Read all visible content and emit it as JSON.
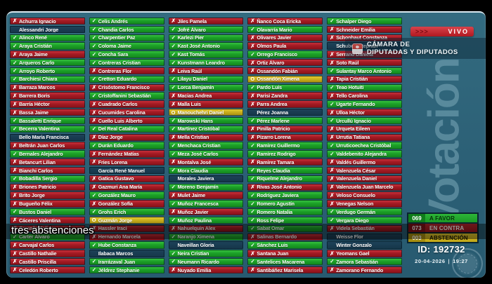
{
  "live": {
    "chevrons": ">>>",
    "label": "VIVO"
  },
  "org": {
    "line1": "CÁMARA DE",
    "line2": "DIPUTADAS Y DIPUTADOS"
  },
  "watermark": "Votación",
  "caption": "tres abstenciones",
  "vote_id": "ID: 192732",
  "date": "20-04-2026",
  "separator": "|",
  "time": "19:27",
  "marks": {
    "yes": "✓",
    "no": "✗",
    "abs": "O",
    "none": ""
  },
  "colors": {
    "favor": "#1da028",
    "contra": "#a31b24",
    "abstencion": "#c4a91a",
    "background": "#2c6076"
  },
  "totals": [
    {
      "type": "favor",
      "value": "069",
      "label": "A FAVOR"
    },
    {
      "type": "contra",
      "value": "073",
      "label": "EN CONTRA"
    },
    {
      "type": "abs",
      "value": "003",
      "label": "ABSTENCIÓN"
    }
  ],
  "columns": [
    [
      {
        "v": "no",
        "n": "Achurra Ignacio"
      },
      {
        "v": "none",
        "n": "Alessandri Jorge"
      },
      {
        "v": "yes",
        "n": "Alinco René"
      },
      {
        "v": "yes",
        "n": "Araya Cristián"
      },
      {
        "v": "no",
        "n": "Araya Jaime"
      },
      {
        "v": "yes",
        "n": "Arqueros Carlo"
      },
      {
        "v": "yes",
        "n": "Arroyo Roberto"
      },
      {
        "v": "yes",
        "n": "Barchiesi Chiara"
      },
      {
        "v": "no",
        "n": "Barraza Marcos"
      },
      {
        "v": "no",
        "n": "Barrera Boris"
      },
      {
        "v": "no",
        "n": "Barría Héctor"
      },
      {
        "v": "no",
        "n": "Bassa Jaime"
      },
      {
        "v": "yes",
        "n": "Bassaletti Enrique"
      },
      {
        "v": "yes",
        "n": "Becerra Valentina"
      },
      {
        "v": "none",
        "n": "Bello María Francisca"
      },
      {
        "v": "no",
        "n": "Beltrán Juan Carlos"
      },
      {
        "v": "yes",
        "n": "Bernales Alejandro"
      },
      {
        "v": "no",
        "n": "Betancurt Lilian"
      },
      {
        "v": "no",
        "n": "Bianchi Carlos"
      },
      {
        "v": "yes",
        "n": "Bobadilla Sergio"
      },
      {
        "v": "no",
        "n": "Briones Patricio"
      },
      {
        "v": "no",
        "n": "Brito Jorge"
      },
      {
        "v": "no",
        "n": "Bugueño Félix"
      },
      {
        "v": "yes",
        "n": "Bustos Daniel"
      },
      {
        "v": "no",
        "n": "Cáceres Valentina"
      },
      {
        "v": "no",
        "n": "Camaño Felipe"
      },
      {
        "v": "yes",
        "n": "Carter Álvaro"
      },
      {
        "v": "no",
        "n": "Carvajal Carlos"
      },
      {
        "v": "no",
        "n": "Castillo Nathalie"
      },
      {
        "v": "no",
        "n": "Castillo Priscilla"
      },
      {
        "v": "no",
        "n": "Celedón Roberto"
      }
    ],
    [
      {
        "v": "yes",
        "n": "Celis Andrés"
      },
      {
        "v": "yes",
        "n": "Chandia Carlos"
      },
      {
        "v": "yes",
        "n": "Charpentier Paz"
      },
      {
        "v": "yes",
        "n": "Coloma Jaime"
      },
      {
        "v": "yes",
        "n": "Concha Sara"
      },
      {
        "v": "yes",
        "n": "Contreras Cristian"
      },
      {
        "v": "no",
        "n": "Contreras Flor"
      },
      {
        "v": "yes",
        "n": "Cretton Eduardo"
      },
      {
        "v": "no",
        "n": "Crisóstomo Francisco"
      },
      {
        "v": "yes",
        "n": "Cristoffanini Sebastián"
      },
      {
        "v": "no",
        "n": "Cuadrado Carlos"
      },
      {
        "v": "no",
        "n": "Cucumides Carolina"
      },
      {
        "v": "no",
        "n": "Cuello Luis Alberto"
      },
      {
        "v": "yes",
        "n": "Del Real Catalina"
      },
      {
        "v": "no",
        "n": "Díaz Jorge"
      },
      {
        "v": "yes",
        "n": "Durán Eduardo"
      },
      {
        "v": "no",
        "n": "Fernández Matías"
      },
      {
        "v": "no",
        "n": "Fries Lorena"
      },
      {
        "v": "none",
        "n": "García René Manuel"
      },
      {
        "v": "no",
        "n": "Gatica Gustavo"
      },
      {
        "v": "no",
        "n": "Gazmuri Ana María"
      },
      {
        "v": "yes",
        "n": "González Mauro"
      },
      {
        "v": "no",
        "n": "González Sofía"
      },
      {
        "v": "yes",
        "n": "Grohs Erich"
      },
      {
        "v": "abs",
        "n": "Guzmán Jorge"
      },
      {
        "v": "no",
        "n": "Hassler Iraci"
      },
      {
        "v": "no",
        "n": "Hernando Marcela"
      },
      {
        "v": "yes",
        "n": "Hube Constanza"
      },
      {
        "v": "none",
        "n": "Ilabaca Marcos"
      },
      {
        "v": "yes",
        "n": "Irarrázaval Juan"
      },
      {
        "v": "yes",
        "n": "Jéldrez Stephanie"
      }
    ],
    [
      {
        "v": "no",
        "n": "Jiles Pamela"
      },
      {
        "v": "yes",
        "n": "Jofré Álvaro"
      },
      {
        "v": "yes",
        "n": "Karlezi Pier"
      },
      {
        "v": "yes",
        "n": "Kast José Antonio"
      },
      {
        "v": "yes",
        "n": "Kast Tomás"
      },
      {
        "v": "yes",
        "n": "Kunstmann Leandro"
      },
      {
        "v": "no",
        "n": "Leiva Raúl"
      },
      {
        "v": "yes",
        "n": "Lilayu Daniel"
      },
      {
        "v": "yes",
        "n": "Lorca Benjamín"
      },
      {
        "v": "no",
        "n": "Macias Andrea"
      },
      {
        "v": "no",
        "n": "Malla Luis"
      },
      {
        "v": "abs",
        "n": "Manouchehri Daniel"
      },
      {
        "v": "yes",
        "n": "Marowski Hans"
      },
      {
        "v": "yes",
        "n": "Martínez Cristóbal"
      },
      {
        "v": "no",
        "n": "Mella Cristian"
      },
      {
        "v": "yes",
        "n": "Menchaca Cristian"
      },
      {
        "v": "yes",
        "n": "Meza José Carlos"
      },
      {
        "v": "no",
        "n": "Montalva José"
      },
      {
        "v": "yes",
        "n": "Mora Claudia"
      },
      {
        "v": "none",
        "n": "Morales Javiera"
      },
      {
        "v": "yes",
        "n": "Moreno Benjamín"
      },
      {
        "v": "no",
        "n": "Mulet Jaime"
      },
      {
        "v": "yes",
        "n": "Muñoz Francesca"
      },
      {
        "v": "no",
        "n": "Muñoz Javier"
      },
      {
        "v": "yes",
        "n": "Muñoz Paulina"
      },
      {
        "v": "no",
        "n": "Nahuelquin Alex"
      },
      {
        "v": "yes",
        "n": "Naranjo Ximena"
      },
      {
        "v": "none",
        "n": "Naveillan Gloria"
      },
      {
        "v": "yes",
        "n": "Neira Cristian"
      },
      {
        "v": "yes",
        "n": "Neumann Ricardo"
      },
      {
        "v": "no",
        "n": "Nuyado Emilia"
      }
    ],
    [
      {
        "v": "no",
        "n": "Ñanco Coca Ericka"
      },
      {
        "v": "yes",
        "n": "Olavarría Mario"
      },
      {
        "v": "no",
        "n": "Olivares Javier"
      },
      {
        "v": "no",
        "n": "Olmos Paula"
      },
      {
        "v": "yes",
        "n": "Orrego Francisco"
      },
      {
        "v": "no",
        "n": "Ortiz Álvaro"
      },
      {
        "v": "no",
        "n": "Ossandón Fabián"
      },
      {
        "v": "abs",
        "n": "Ossandón Ximena"
      },
      {
        "v": "yes",
        "n": "Pardo Luis"
      },
      {
        "v": "no",
        "n": "Parisi Zandra"
      },
      {
        "v": "no",
        "n": "Parra Andrea"
      },
      {
        "v": "none",
        "n": "Pérez Joanna"
      },
      {
        "v": "yes",
        "n": "Pérez Marlene"
      },
      {
        "v": "no",
        "n": "Pinilla Patricio"
      },
      {
        "v": "no",
        "n": "Pizarro Lorena"
      },
      {
        "v": "yes",
        "n": "Ramírez Guillermo"
      },
      {
        "v": "yes",
        "n": "Ramírez Rodrigo"
      },
      {
        "v": "no",
        "n": "Ramírez Tamara"
      },
      {
        "v": "yes",
        "n": "Reyes Claudia"
      },
      {
        "v": "yes",
        "n": "Riquelme Alejandro"
      },
      {
        "v": "no",
        "n": "Rivas José Antonio"
      },
      {
        "v": "yes",
        "n": "Rodríguez Javiera"
      },
      {
        "v": "yes",
        "n": "Romero Agustín"
      },
      {
        "v": "yes",
        "n": "Romero Natalia"
      },
      {
        "v": "yes",
        "n": "Ross Felipe"
      },
      {
        "v": "yes",
        "n": "Sabat Omar"
      },
      {
        "v": "no",
        "n": "Salinas Bernardo"
      },
      {
        "v": "yes",
        "n": "Sánchez Luis"
      },
      {
        "v": "no",
        "n": "Santana Juan"
      },
      {
        "v": "yes",
        "n": "Santelices Macarena"
      },
      {
        "v": "no",
        "n": "Santibáñez Marisela"
      }
    ],
    [
      {
        "v": "yes",
        "n": "Schalper Diego"
      },
      {
        "v": "no",
        "n": "Schneider Emilia"
      },
      {
        "v": "no",
        "n": "Schonhaut Constanza"
      },
      {
        "v": "none",
        "n": "Schubert Stephan"
      },
      {
        "v": "no",
        "n": "Serrano Daniela"
      },
      {
        "v": "no",
        "n": "Soto Raúl"
      },
      {
        "v": "yes",
        "n": "Sulantay Marco Antonio"
      },
      {
        "v": "no",
        "n": "Tapia Cristián"
      },
      {
        "v": "yes",
        "n": "Teao Hotuiti"
      },
      {
        "v": "no",
        "n": "Tello Carolina"
      },
      {
        "v": "yes",
        "n": "Ugarte Fernando"
      },
      {
        "v": "no",
        "n": "Ulloa Héctor"
      },
      {
        "v": "yes",
        "n": "Urcullú Ignacio"
      },
      {
        "v": "no",
        "n": "Urqueta Eileen"
      },
      {
        "v": "no",
        "n": "Urrutia Tatiana"
      },
      {
        "v": "yes",
        "n": "Urruticoechea Cristóbal"
      },
      {
        "v": "yes",
        "n": "Valdebenito Alejandra"
      },
      {
        "v": "no",
        "n": "Valdés Guillermo"
      },
      {
        "v": "no",
        "n": "Valenzuela César"
      },
      {
        "v": "no",
        "n": "Valenzuela Daniel"
      },
      {
        "v": "no",
        "n": "Valenzuela Juan Marcelo"
      },
      {
        "v": "no",
        "n": "Veloso Consuelo"
      },
      {
        "v": "no",
        "n": "Venegas Nelson"
      },
      {
        "v": "yes",
        "n": "Verdugo Germán"
      },
      {
        "v": "yes",
        "n": "Vergara Diego"
      },
      {
        "v": "no",
        "n": "Videla Sebastián"
      },
      {
        "v": "none",
        "n": "Weisse Flor"
      },
      {
        "v": "none",
        "n": "Winter Gonzalo"
      },
      {
        "v": "no",
        "n": "Yeomans Gael"
      },
      {
        "v": "yes",
        "n": "Zamora Sebastián"
      },
      {
        "v": "no",
        "n": "Zamorano Fernando"
      }
    ]
  ]
}
